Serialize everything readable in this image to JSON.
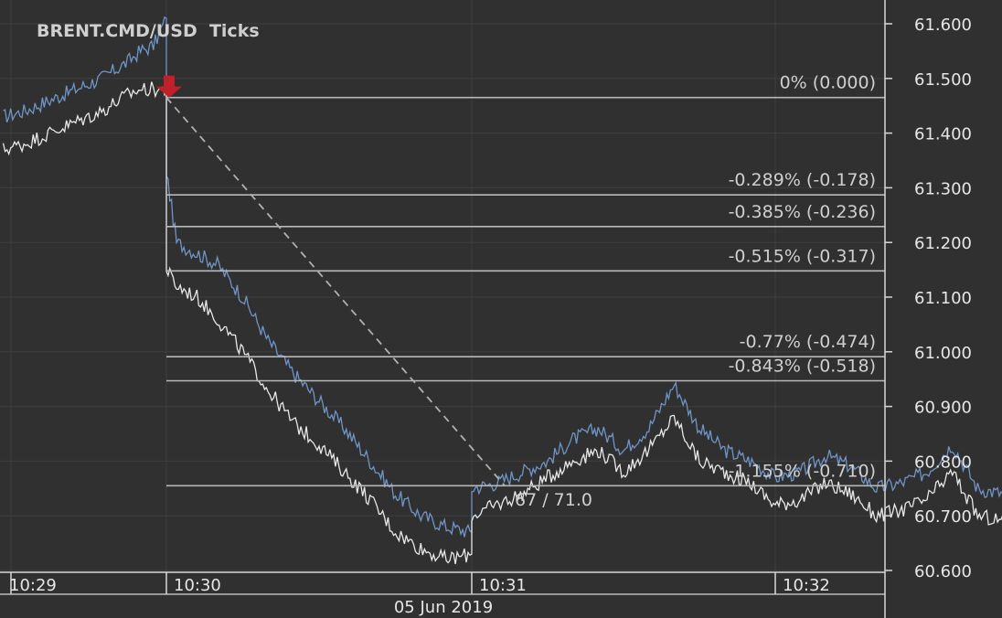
{
  "colors": {
    "background": "#303030",
    "grid": "#3e3e3e",
    "axis": "#d8d8d8",
    "text": "#e6e6e6",
    "ask_series": "#6f95c7",
    "bid_series": "#e8e8e8",
    "fib_line": "#b8b8b8",
    "trend_line": "#b0b0b0",
    "marker": "#c0202a"
  },
  "icons": {
    "marker": "down-arrow-icon"
  },
  "chart_data": {
    "type": "line",
    "title": "BRENT.CMD/USD  Ticks",
    "ylim": [
      60.6,
      61.62
    ],
    "yticks": [
      61.6,
      61.5,
      61.4,
      61.3,
      61.2,
      61.1,
      61.0,
      60.9,
      60.8,
      60.7,
      60.6
    ],
    "ytick_labels": [
      "61.600",
      "61.500",
      "61.400",
      "61.300",
      "61.200",
      "61.100",
      "61.000",
      "60.900",
      "60.800",
      "60.700",
      "60.600"
    ],
    "xlim": [
      "10:28:57",
      "10:32:55"
    ],
    "xticks": [
      "10:29:00",
      "10:30:00",
      "10:31:00",
      "10:32:00"
    ],
    "xtick_labels": [
      "10:29",
      "10:30",
      "10:31",
      "10:32"
    ],
    "date_label": "05 Jun 2019",
    "grid": true,
    "series": [
      {
        "color": "#6f95c7",
        "x": [
          "10:28:57",
          "10:29:05",
          "10:29:15",
          "10:29:25",
          "10:29:35",
          "10:29:45",
          "10:29:50",
          "10:29:55",
          "10:30:00",
          "10:30:00",
          "10:30:02",
          "10:30:06",
          "10:30:10",
          "10:30:15",
          "10:30:20",
          "10:30:25",
          "10:30:30",
          "10:30:35",
          "10:30:40",
          "10:30:45",
          "10:30:50",
          "10:30:55",
          "10:31:00",
          "10:31:00",
          "10:31:05",
          "10:31:10",
          "10:31:15",
          "10:31:20",
          "10:31:25",
          "10:31:30",
          "10:31:35",
          "10:31:40",
          "10:31:45",
          "10:31:50",
          "10:31:55",
          "10:32:00",
          "10:32:05",
          "10:32:10",
          "10:32:15",
          "10:32:20",
          "10:32:25",
          "10:32:30",
          "10:32:35",
          "10:32:40",
          "10:32:45",
          "10:32:50",
          "10:32:55"
        ],
        "y": [
          61.43,
          61.44,
          61.46,
          61.48,
          61.5,
          61.53,
          61.55,
          61.56,
          61.61,
          61.33,
          61.2,
          61.18,
          61.16,
          61.1,
          61.02,
          60.96,
          60.91,
          60.86,
          60.8,
          60.74,
          60.7,
          60.68,
          60.67,
          60.75,
          60.76,
          60.78,
          60.8,
          60.84,
          60.86,
          60.82,
          60.86,
          60.94,
          60.86,
          60.82,
          60.8,
          60.77,
          60.78,
          60.81,
          60.79,
          60.75,
          60.76,
          60.78,
          60.83,
          60.75,
          60.74,
          60.72,
          60.71
        ]
      },
      {
        "color": "#e8e8e8",
        "x": [
          "10:28:57",
          "10:29:05",
          "10:29:15",
          "10:29:25",
          "10:29:35",
          "10:29:45",
          "10:29:50",
          "10:29:55",
          "10:30:00",
          "10:30:00",
          "10:30:02",
          "10:30:06",
          "10:30:10",
          "10:30:15",
          "10:30:20",
          "10:30:25",
          "10:30:30",
          "10:30:35",
          "10:30:40",
          "10:30:45",
          "10:30:50",
          "10:30:55",
          "10:31:00",
          "10:31:00",
          "10:31:05",
          "10:31:10",
          "10:31:15",
          "10:31:20",
          "10:31:25",
          "10:31:30",
          "10:31:35",
          "10:31:40",
          "10:31:45",
          "10:31:50",
          "10:31:55",
          "10:32:00",
          "10:32:05",
          "10:32:10",
          "10:32:15",
          "10:32:20",
          "10:32:25",
          "10:32:30",
          "10:32:35",
          "10:32:40",
          "10:32:45",
          "10:32:50",
          "10:32:55"
        ],
        "y": [
          61.37,
          61.38,
          61.4,
          61.42,
          61.44,
          61.47,
          61.48,
          61.48,
          61.48,
          61.15,
          61.12,
          61.1,
          61.06,
          61.0,
          60.93,
          60.87,
          60.83,
          60.78,
          60.73,
          60.67,
          60.64,
          60.62,
          60.63,
          60.7,
          60.72,
          60.74,
          60.77,
          60.8,
          60.82,
          60.78,
          60.82,
          60.88,
          60.8,
          60.78,
          60.76,
          60.72,
          60.73,
          60.76,
          60.74,
          60.7,
          60.71,
          60.73,
          60.78,
          60.7,
          60.69,
          60.67,
          60.66
        ]
      }
    ],
    "fib_levels": [
      {
        "value": 61.465,
        "label": "0% (0.000)"
      },
      {
        "value": 61.287,
        "label": "-0.289% (-0.178)"
      },
      {
        "value": 61.229,
        "label": "-0.385% (-0.236)"
      },
      {
        "value": 61.148,
        "label": "-0.515% (-0.317)"
      },
      {
        "value": 60.991,
        "label": "-0.77% (-0.474)"
      },
      {
        "value": 60.947,
        "label": "-0.843% (-0.518)"
      },
      {
        "value": 60.755,
        "label": "-1.155% (-0.710)"
      }
    ],
    "trend_line": {
      "from": {
        "x": "10:30:00",
        "y": 61.465
      },
      "to": {
        "x": "10:31:00",
        "y": 60.755
      }
    },
    "annotation": "67 / 71.0"
  }
}
